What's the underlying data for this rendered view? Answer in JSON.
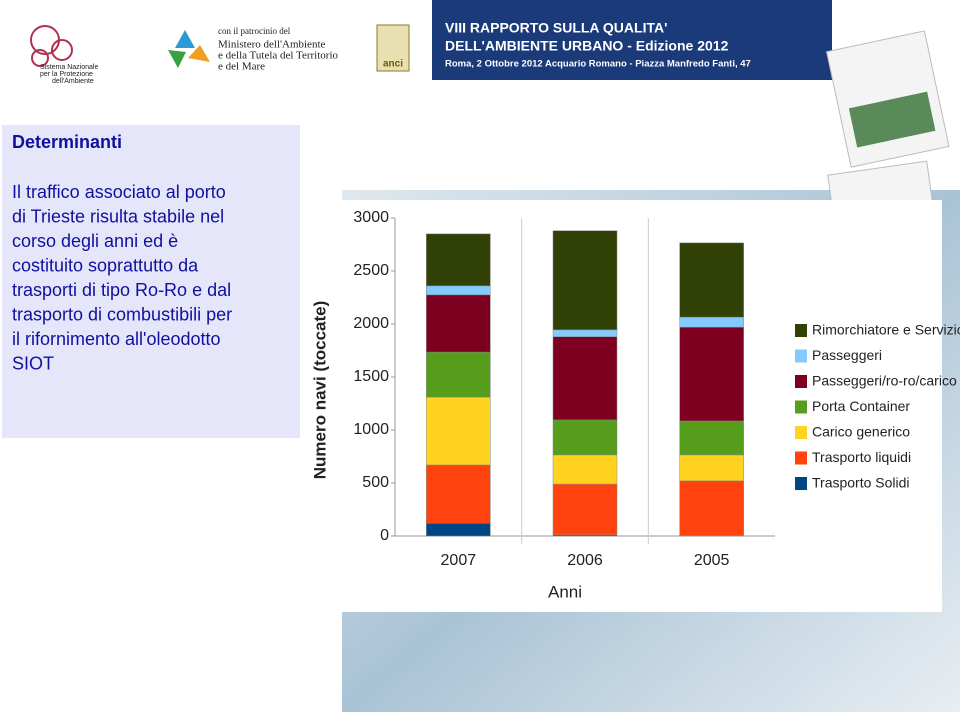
{
  "header": {
    "agency": [
      "Sistema Nazionale",
      "per la Protezione",
      "dell'Ambiente"
    ],
    "patronage": [
      "con il patrocinio del",
      "Ministero dell'Ambiente",
      "e della Tutela del Territorio",
      "e del Mare"
    ],
    "anci": "anci",
    "banner": [
      "VIII RAPPORTO SULLA QUALITA'",
      "DELL'AMBIENTE URBANO - Edizione 2012",
      "Roma, 2 Ottobre 2012 Acquario Romano - Piazza Manfredo Fanti, 47"
    ]
  },
  "sidebar": {
    "title": "Determinanti",
    "lines": [
      "Il traffico associato al porto",
      "di Trieste risulta stabile nel",
      "corso degli anni ed è",
      "costituito soprattutto da",
      "trasporti di tipo Ro-Ro e dal",
      "trasporto di combustibili per",
      "il rifornimento all'oleodotto",
      "SIOT"
    ]
  },
  "chart_data": {
    "type": "stacked_bar",
    "x_label": "Anni",
    "y_label": "Numero navi (toccate)",
    "categories": [
      "2007",
      "2006",
      "2005"
    ],
    "ylim": [
      0,
      3000
    ],
    "yticks": [
      0,
      500,
      1000,
      1500,
      2000,
      2500,
      3000
    ],
    "grid": false,
    "series": [
      {
        "name": "Trasporto Solidi",
        "color": "#004586",
        "values": [
          120,
          10,
          5
        ]
      },
      {
        "name": "Trasporto liquidi",
        "color": "#ff420e",
        "values": [
          550,
          480,
          515
        ]
      },
      {
        "name": "Carico generico",
        "color": "#ffd320",
        "values": [
          640,
          275,
          245
        ]
      },
      {
        "name": "Porta Container",
        "color": "#579d1c",
        "values": [
          425,
          330,
          320
        ]
      },
      {
        "name": "Passeggeri/ro-ro/carico",
        "color": "#7e0021",
        "values": [
          540,
          785,
          885
        ]
      },
      {
        "name": "Passeggeri",
        "color": "#83caff",
        "values": [
          85,
          65,
          95
        ]
      },
      {
        "name": "Rimorchiatore e Servizio",
        "color": "#314004",
        "values": [
          490,
          935,
          700
        ]
      }
    ]
  }
}
